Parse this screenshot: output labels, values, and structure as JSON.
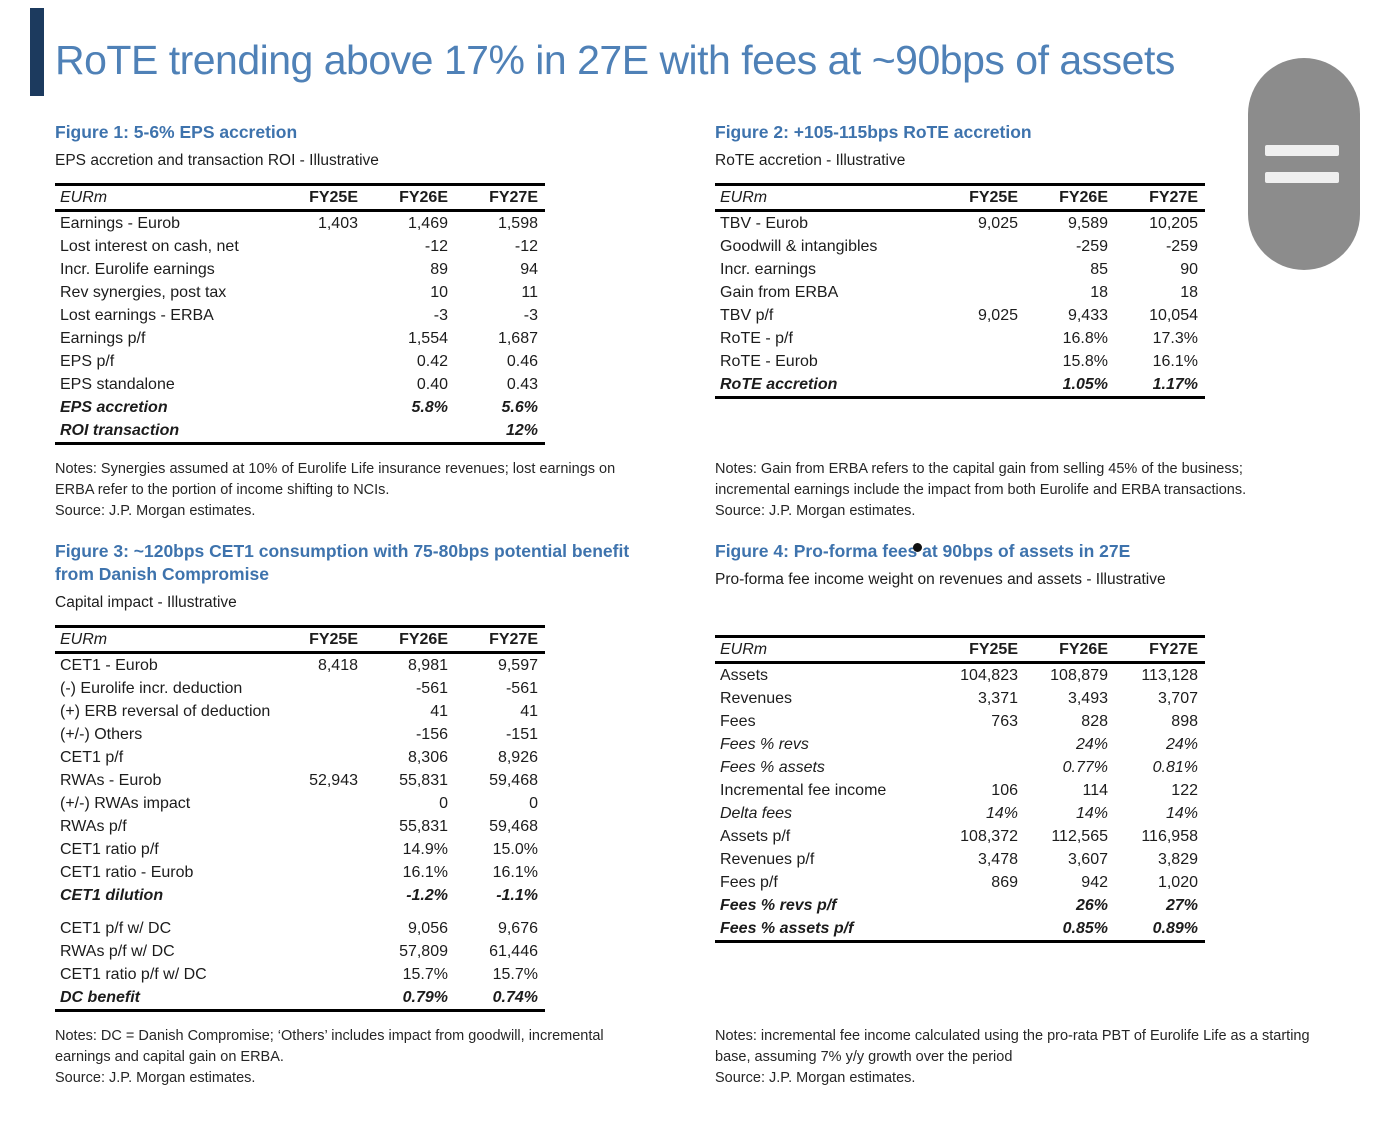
{
  "colors": {
    "title_blue": "#4f81b7",
    "heading_blue": "#3e73ad",
    "text": "#1c1c1c",
    "rule_black": "#000000",
    "capsule_gray": "#8c8c8c",
    "accent_navy": "#1c3a5e"
  },
  "header": {
    "title": "RoTE trending above 17% in 27E with fees at ~90bps of assets"
  },
  "figures": [
    {
      "heading": "Figure 1: 5-6% EPS accretion",
      "subtitle": "EPS accretion and transaction ROI - Illustrative",
      "table": {
        "unit_label": "EURm",
        "columns": [
          "FY25E",
          "FY26E",
          "FY27E"
        ],
        "rows": [
          {
            "label": "Earnings - Eurob",
            "values": [
              "1,403",
              "1,469",
              "1,598"
            ],
            "style": "normal"
          },
          {
            "label": "Lost interest on cash, net",
            "values": [
              "",
              "-12",
              "-12"
            ],
            "style": "normal"
          },
          {
            "label": "Incr. Eurolife earnings",
            "values": [
              "",
              "89",
              "94"
            ],
            "style": "normal"
          },
          {
            "label": "Rev synergies, post tax",
            "values": [
              "",
              "10",
              "11"
            ],
            "style": "normal"
          },
          {
            "label": "Lost earnings - ERBA",
            "values": [
              "",
              "-3",
              "-3"
            ],
            "style": "normal"
          },
          {
            "label": "Earnings p/f",
            "values": [
              "",
              "1,554",
              "1,687"
            ],
            "style": "normal"
          },
          {
            "label": "EPS p/f",
            "values": [
              "",
              "0.42",
              "0.46"
            ],
            "style": "normal"
          },
          {
            "label": "EPS standalone",
            "values": [
              "",
              "0.40",
              "0.43"
            ],
            "style": "normal"
          },
          {
            "label": "EPS accretion",
            "values": [
              "",
              "5.8%",
              "5.6%"
            ],
            "style": "bold"
          },
          {
            "label": "ROI transaction",
            "values": [
              "",
              "",
              "12%"
            ],
            "style": "bold"
          }
        ]
      },
      "notes": "Notes: Synergies assumed at 10% of Eurolife Life insurance revenues; lost earnings on ERBA refer to the portion of income shifting to NCIs.",
      "source": "Source: J.P. Morgan estimates."
    },
    {
      "heading": "Figure 2: +105-115bps RoTE accretion",
      "subtitle": "RoTE accretion - Illustrative",
      "table": {
        "unit_label": "EURm",
        "columns": [
          "FY25E",
          "FY26E",
          "FY27E"
        ],
        "rows": [
          {
            "label": "TBV - Eurob",
            "values": [
              "9,025",
              "9,589",
              "10,205"
            ],
            "style": "normal"
          },
          {
            "label": "Goodwill & intangibles",
            "values": [
              "",
              "-259",
              "-259"
            ],
            "style": "normal"
          },
          {
            "label": "Incr. earnings",
            "values": [
              "",
              "85",
              "90"
            ],
            "style": "normal"
          },
          {
            "label": "Gain from ERBA",
            "values": [
              "",
              "18",
              "18"
            ],
            "style": "normal"
          },
          {
            "label": "TBV p/f",
            "values": [
              "9,025",
              "9,433",
              "10,054"
            ],
            "style": "normal"
          },
          {
            "label": "RoTE - p/f",
            "values": [
              "",
              "16.8%",
              "17.3%"
            ],
            "style": "normal"
          },
          {
            "label": "RoTE - Eurob",
            "values": [
              "",
              "15.8%",
              "16.1%"
            ],
            "style": "normal"
          },
          {
            "label": "RoTE accretion",
            "values": [
              "",
              "1.05%",
              "1.17%"
            ],
            "style": "bold"
          }
        ]
      },
      "notes": "Notes: Gain from ERBA refers to the capital gain from selling 45% of the business; incremental earnings include the impact from both Eurolife and ERBA transactions.",
      "source": "Source: J.P. Morgan estimates."
    },
    {
      "heading": "Figure 3: ~120bps CET1 consumption with 75-80bps potential benefit from Danish Compromise",
      "subtitle": "Capital impact - Illustrative",
      "table": {
        "unit_label": "EURm",
        "columns": [
          "FY25E",
          "FY26E",
          "FY27E"
        ],
        "rows": [
          {
            "label": "CET1 - Eurob",
            "values": [
              "8,418",
              "8,981",
              "9,597"
            ],
            "style": "normal"
          },
          {
            "label": "(-) Eurolife incr. deduction",
            "values": [
              "",
              "-561",
              "-561"
            ],
            "style": "normal"
          },
          {
            "label": "(+) ERB reversal of deduction",
            "values": [
              "",
              "41",
              "41"
            ],
            "style": "normal"
          },
          {
            "label": "(+/-) Others",
            "values": [
              "",
              "-156",
              "-151"
            ],
            "style": "normal"
          },
          {
            "label": "CET1 p/f",
            "values": [
              "",
              "8,306",
              "8,926"
            ],
            "style": "normal"
          },
          {
            "label": "RWAs - Eurob",
            "values": [
              "52,943",
              "55,831",
              "59,468"
            ],
            "style": "normal"
          },
          {
            "label": "(+/-) RWAs impact",
            "values": [
              "",
              "0",
              "0"
            ],
            "style": "normal"
          },
          {
            "label": "RWAs p/f",
            "values": [
              "",
              "55,831",
              "59,468"
            ],
            "style": "normal"
          },
          {
            "label": "CET1 ratio p/f",
            "values": [
              "",
              "14.9%",
              "15.0%"
            ],
            "style": "normal"
          },
          {
            "label": "CET1 ratio - Eurob",
            "values": [
              "",
              "16.1%",
              "16.1%"
            ],
            "style": "normal"
          },
          {
            "label": "CET1 dilution",
            "values": [
              "",
              "-1.2%",
              "-1.1%"
            ],
            "style": "bold"
          },
          {
            "label": "",
            "values": [
              "",
              "",
              ""
            ],
            "style": "spacer"
          },
          {
            "label": "CET1 p/f w/ DC",
            "values": [
              "",
              "9,056",
              "9,676"
            ],
            "style": "normal"
          },
          {
            "label": "RWAs p/f w/ DC",
            "values": [
              "",
              "57,809",
              "61,446"
            ],
            "style": "normal"
          },
          {
            "label": "CET1 ratio p/f w/ DC",
            "values": [
              "",
              "15.7%",
              "15.7%"
            ],
            "style": "normal"
          },
          {
            "label": "DC benefit",
            "values": [
              "",
              "0.79%",
              "0.74%"
            ],
            "style": "bold"
          }
        ]
      },
      "notes": "Notes: DC = Danish Compromise; ‘Others’ includes impact from goodwill, incremental earnings and capital gain on ERBA.",
      "source": "Source: J.P. Morgan estimates."
    },
    {
      "heading": "Figure 4: Pro-forma fees at 90bps of assets in 27E",
      "subtitle": "Pro-forma fee income weight on revenues and assets - Illustrative",
      "table": {
        "unit_label": "EURm",
        "columns": [
          "FY25E",
          "FY26E",
          "FY27E"
        ],
        "rows": [
          {
            "label": "Assets",
            "values": [
              "104,823",
              "108,879",
              "113,128"
            ],
            "style": "normal"
          },
          {
            "label": "Revenues",
            "values": [
              "3,371",
              "3,493",
              "3,707"
            ],
            "style": "normal"
          },
          {
            "label": "Fees",
            "values": [
              "763",
              "828",
              "898"
            ],
            "style": "normal"
          },
          {
            "label": "Fees % revs",
            "values": [
              "",
              "24%",
              "24%"
            ],
            "style": "italic"
          },
          {
            "label": "Fees % assets",
            "values": [
              "",
              "0.77%",
              "0.81%"
            ],
            "style": "italic"
          },
          {
            "label": "Incremental fee income",
            "values": [
              "106",
              "114",
              "122"
            ],
            "style": "normal"
          },
          {
            "label": "Delta fees",
            "values": [
              "14%",
              "14%",
              "14%"
            ],
            "style": "italic"
          },
          {
            "label": "Assets p/f",
            "values": [
              "108,372",
              "112,565",
              "116,958"
            ],
            "style": "normal"
          },
          {
            "label": "Revenues p/f",
            "values": [
              "3,478",
              "3,607",
              "3,829"
            ],
            "style": "normal"
          },
          {
            "label": "Fees p/f",
            "values": [
              "869",
              "942",
              "1,020"
            ],
            "style": "normal"
          },
          {
            "label": "Fees % revs p/f",
            "values": [
              "",
              "26%",
              "27%"
            ],
            "style": "bold"
          },
          {
            "label": "Fees % assets p/f",
            "values": [
              "",
              "0.85%",
              "0.89%"
            ],
            "style": "bold"
          }
        ]
      },
      "notes": "Notes: incremental fee income calculated using the pro-rata PBT of Eurolife Life as a starting base, assuming 7% y/y growth over the period",
      "source": "Source: J.P. Morgan estimates."
    }
  ]
}
